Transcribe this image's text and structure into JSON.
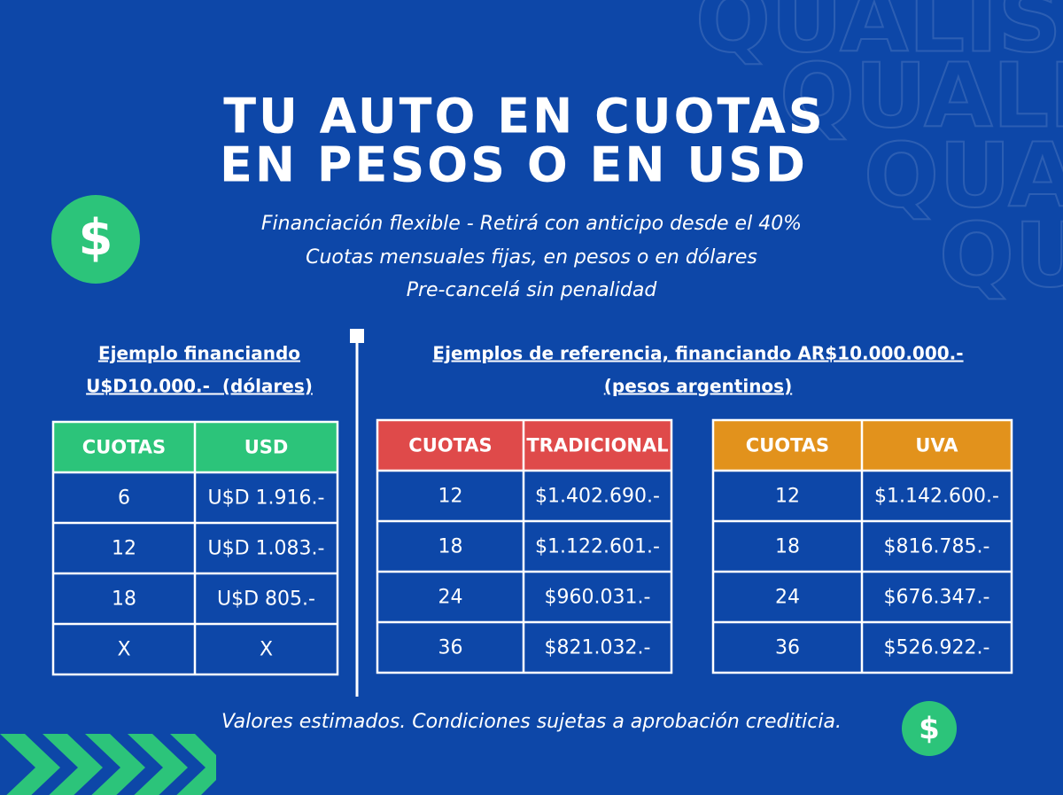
{
  "watermark": "QUALIS",
  "icon": "$",
  "header": {
    "title": [
      "TU AUTO EN CUOTAS",
      "EN PESOS O EN USD"
    ],
    "subtitle": [
      "Financiación flexible - Retirá con anticipo desde el 40%",
      "Cuotas mensuales fijas, en pesos o en dólares",
      "Pre-cancelá sin penalidad"
    ]
  },
  "left_heading": [
    "Ejemplo financiando",
    "U$D10.000.-  (dólares)"
  ],
  "right_heading": [
    "Ejemplos de referencia, financiando AR$10.000.000.-",
    "(pesos argentinos)"
  ],
  "tables": [
    {
      "headers": [
        "CUOTAS",
        "USD"
      ],
      "color": "#2cc47a",
      "rows": [
        [
          "6",
          "U$D 1.916.-"
        ],
        [
          "12",
          "U$D 1.083.-"
        ],
        [
          "18",
          "U$D 805.-"
        ],
        [
          "X",
          "X"
        ]
      ]
    },
    {
      "headers": [
        "CUOTAS",
        "TRADICIONAL"
      ],
      "color": "#df4a4a",
      "rows": [
        [
          "12",
          "$1.402.690.-"
        ],
        [
          "18",
          "$1.122.601.-"
        ],
        [
          "24",
          "$960.031.-"
        ],
        [
          "36",
          "$821.032.-"
        ]
      ]
    },
    {
      "headers": [
        "CUOTAS",
        "UVA"
      ],
      "color": "#e2921c",
      "rows": [
        [
          "12",
          "$1.142.600.-"
        ],
        [
          "18",
          "$816.785.-"
        ],
        [
          "24",
          "$676.347.-"
        ],
        [
          "36",
          "$526.922.-"
        ]
      ]
    }
  ],
  "footnote": "Valores estimados. Condiciones sujetas a aprobación crediticia."
}
